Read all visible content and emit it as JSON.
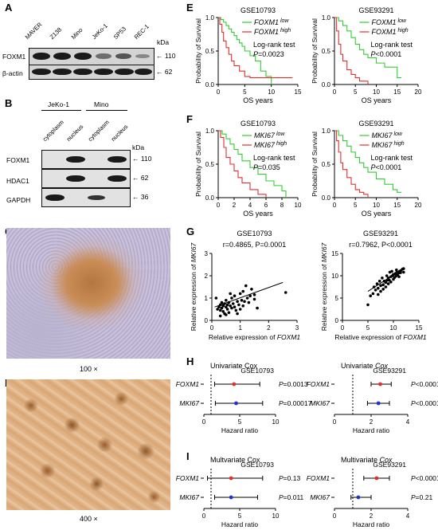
{
  "panel_labels": {
    "A": "A",
    "B": "B",
    "C": "C",
    "D": "D",
    "E": "E",
    "F": "F",
    "G": "G",
    "H": "H",
    "I": "I"
  },
  "panelA": {
    "lanes": [
      "MAVER",
      "Z138",
      "Mino",
      "JeKo-1",
      "SP53",
      "REC-1"
    ],
    "kda_label": "kDa",
    "rows": [
      {
        "name": "FOXM1",
        "kda": "110"
      },
      {
        "name": "β-actin",
        "kda": "62"
      }
    ]
  },
  "panelB": {
    "groups": [
      "JeKo-1",
      "Mino"
    ],
    "lanes": [
      "cytoplasm",
      "nucleus",
      "cytoplasm",
      "nucleus"
    ],
    "kda_label": "kDa",
    "rows": [
      {
        "name": "FOXM1",
        "kda": "110"
      },
      {
        "name": "HDAC1",
        "kda": "62"
      },
      {
        "name": "GAPDH",
        "kda": "36"
      }
    ]
  },
  "panelC": {
    "caption": "100 ×"
  },
  "panelD": {
    "caption": "400 ×"
  },
  "km_charts": [
    {
      "id": "E1",
      "title": "GSE10793",
      "gene": "FOXM1",
      "low": "FOXM1",
      "high": "FOXM1",
      "low_sup": "low",
      "high_sup": "high",
      "test": "Log-rank test",
      "p": "P=0.0023",
      "xlabel": "OS years",
      "ylabel": "Probability of Survival",
      "xticks": [
        "0",
        "5",
        "10",
        "15"
      ],
      "yticks": [
        "0.0",
        "0.5",
        "1.0"
      ],
      "xmax": 15
    },
    {
      "id": "E2",
      "title": "GSE93291",
      "gene": "FOXM1",
      "low": "FOXM1",
      "high": "FOXM1",
      "low_sup": "low",
      "high_sup": "high",
      "test": "Log-rank test",
      "p": "P<0.0001",
      "xlabel": "OS years",
      "ylabel": "Probability of Survival",
      "xticks": [
        "0",
        "5",
        "10",
        "15",
        "20"
      ],
      "yticks": [
        "0.0",
        "0.5",
        "1.0"
      ],
      "xmax": 20
    },
    {
      "id": "F1",
      "title": "GSE10793",
      "gene": "MKI67",
      "low": "MKI67",
      "high": "MKI67",
      "low_sup": "low",
      "high_sup": "high",
      "test": "Log-rank test",
      "p": "P=0.035",
      "xlabel": "OS years",
      "ylabel": "Probability of Survival",
      "xticks": [
        "0",
        "2",
        "4",
        "6",
        "8",
        "10"
      ],
      "yticks": [
        "0.0",
        "0.5",
        "1.0"
      ],
      "xmax": 10
    },
    {
      "id": "F2",
      "title": "GSE93291",
      "gene": "MKI67",
      "low": "MKI67",
      "high": "MKI67",
      "low_sup": "low",
      "high_sup": "high",
      "test": "Log-rank test",
      "p": "P<0.0001",
      "xlabel": "OS years",
      "ylabel": "Probability of Survival",
      "xticks": [
        "0",
        "5",
        "10",
        "15",
        "20"
      ],
      "yticks": [
        "0.0",
        "0.5",
        "1.0"
      ],
      "xmax": 20
    }
  ],
  "scatter_charts": [
    {
      "id": "G1",
      "title": "GSE10793",
      "stat": "r=0.4865, P=0.0001",
      "xlabel_prefix": "Relative expression of ",
      "xgene": "FOXM1",
      "ylabel_prefix": "Relative expression of ",
      "ygene": "MKI67",
      "xticks": [
        "0",
        "1",
        "2",
        "3"
      ],
      "yticks": [
        "0",
        "1",
        "2",
        "3"
      ]
    },
    {
      "id": "G2",
      "title": "GSE93291",
      "stat": "r=0.7962, P<0.0001",
      "xlabel_prefix": "Relative expression of ",
      "xgene": "FOXM1",
      "ylabel_prefix": "Relative expression of ",
      "ygene": "MKI67",
      "xticks": [
        "0",
        "5",
        "10",
        "15"
      ],
      "yticks": [
        "0",
        "5",
        "10",
        "15"
      ]
    }
  ],
  "forest_charts": [
    {
      "id": "H1",
      "title": "Univariate Cox",
      "dataset": "GSE10793",
      "xlabel": "Hazard ratio",
      "xticks": [
        "0",
        "5",
        "10"
      ],
      "rows": [
        {
          "name": "FOXM1",
          "p": "P=0.0013"
        },
        {
          "name": "MKI67",
          "p": "P=0.00017"
        }
      ]
    },
    {
      "id": "H2",
      "title": "Univariate Cox",
      "dataset": "GSE93291",
      "xlabel": "Hazard ratio",
      "xticks": [
        "0",
        "2",
        "4"
      ],
      "rows": [
        {
          "name": "FOXM1",
          "p": "P<0.0001"
        },
        {
          "name": "MKI67",
          "p": "P<0.0001"
        }
      ]
    },
    {
      "id": "I1",
      "title": "Multvariate Cox",
      "dataset": "GSE10793",
      "xlabel": "Hazard ratio",
      "xticks": [
        "0",
        "5",
        "10"
      ],
      "rows": [
        {
          "name": "FOXM1",
          "p": "P=0.13"
        },
        {
          "name": "MKI67",
          "p": "P=0.011"
        }
      ]
    },
    {
      "id": "I2",
      "title": "Multivariate Cox",
      "dataset": "GSE93291",
      "xlabel": "Hazard ratio",
      "xticks": [
        "0",
        "2",
        "4"
      ],
      "rows": [
        {
          "name": "FOXM1",
          "p": "P<0.0001"
        },
        {
          "name": "MKI67",
          "p": "P=0.21"
        }
      ]
    }
  ],
  "chart_data": [
    {
      "type": "line",
      "id": "E1",
      "title": "GSE10793",
      "xlabel": "OS years",
      "ylabel": "Probability of Survival",
      "xlim": [
        0,
        15
      ],
      "ylim": [
        0,
        1
      ],
      "series": [
        {
          "name": "FOXM1 low",
          "color": "#33cc33",
          "x": [
            0,
            0.5,
            1,
            1.5,
            2,
            2.5,
            3,
            3.5,
            4,
            4.5,
            5,
            6,
            7,
            8,
            9,
            10
          ],
          "y": [
            1,
            0.97,
            0.93,
            0.88,
            0.83,
            0.78,
            0.73,
            0.67,
            0.62,
            0.57,
            0.5,
            0.43,
            0.35,
            0.2,
            0.12,
            0.0
          ]
        },
        {
          "name": "FOXM1 high",
          "color": "#e03030",
          "x": [
            0,
            0.3,
            0.7,
            1,
            1.5,
            2,
            2.5,
            3,
            4,
            5,
            6,
            14
          ],
          "y": [
            1,
            0.9,
            0.78,
            0.65,
            0.55,
            0.45,
            0.35,
            0.28,
            0.2,
            0.12,
            0.1,
            0.1
          ]
        }
      ]
    },
    {
      "type": "line",
      "id": "E2",
      "title": "GSE93291",
      "xlabel": "OS years",
      "ylabel": "Probability of Survival",
      "xlim": [
        0,
        20
      ],
      "ylim": [
        0,
        1
      ],
      "series": [
        {
          "name": "FOXM1 low",
          "color": "#33cc33",
          "x": [
            0,
            1,
            2,
            3,
            4,
            5,
            6,
            7,
            8,
            10,
            12,
            15,
            16
          ],
          "y": [
            1,
            0.95,
            0.88,
            0.8,
            0.7,
            0.6,
            0.52,
            0.45,
            0.4,
            0.32,
            0.26,
            0.1,
            0.1
          ]
        },
        {
          "name": "FOXM1 high",
          "color": "#e03030",
          "x": [
            0,
            0.5,
            1,
            1.5,
            2,
            3,
            4,
            5,
            6,
            8
          ],
          "y": [
            1,
            0.8,
            0.6,
            0.45,
            0.35,
            0.22,
            0.15,
            0.1,
            0.05,
            0.0
          ]
        }
      ]
    },
    {
      "type": "line",
      "id": "F1",
      "title": "GSE10793",
      "xlabel": "OS years",
      "ylabel": "Probability of Survival",
      "xlim": [
        0,
        10
      ],
      "ylim": [
        0,
        1
      ],
      "series": [
        {
          "name": "MKI67 low",
          "color": "#33cc33",
          "x": [
            0,
            0.5,
            1,
            1.5,
            2,
            2.5,
            3,
            4,
            5,
            6,
            7,
            8,
            8.5
          ],
          "y": [
            1,
            0.95,
            0.88,
            0.8,
            0.72,
            0.65,
            0.55,
            0.45,
            0.35,
            0.25,
            0.18,
            0.1,
            0.0
          ]
        },
        {
          "name": "MKI67 high",
          "color": "#e03030",
          "x": [
            0,
            0.3,
            0.7,
            1,
            1.5,
            2,
            2.5,
            3,
            4,
            5,
            6
          ],
          "y": [
            1,
            0.9,
            0.75,
            0.6,
            0.5,
            0.4,
            0.3,
            0.22,
            0.12,
            0.05,
            0.0
          ]
        }
      ]
    },
    {
      "type": "line",
      "id": "F2",
      "title": "GSE93291",
      "xlabel": "OS years",
      "ylabel": "Probability of Survival",
      "xlim": [
        0,
        20
      ],
      "ylim": [
        0,
        1
      ],
      "series": [
        {
          "name": "MKI67 low",
          "color": "#33cc33",
          "x": [
            0,
            1,
            2,
            3,
            4,
            5,
            6,
            7,
            8,
            10,
            12,
            14,
            15,
            16
          ],
          "y": [
            1,
            0.93,
            0.85,
            0.77,
            0.68,
            0.6,
            0.52,
            0.45,
            0.38,
            0.28,
            0.2,
            0.12,
            0.08,
            0.08
          ]
        },
        {
          "name": "MKI67 high",
          "color": "#e03030",
          "x": [
            0,
            0.5,
            1,
            1.5,
            2,
            3,
            4,
            5,
            6,
            7,
            8
          ],
          "y": [
            1,
            0.85,
            0.68,
            0.52,
            0.42,
            0.3,
            0.2,
            0.12,
            0.08,
            0.05,
            0.0
          ]
        }
      ]
    },
    {
      "type": "scatter",
      "id": "G1",
      "title": "GSE10793",
      "xlabel": "Relative expression of FOXM1",
      "ylabel": "Relative expression of MKI67",
      "xlim": [
        0,
        3
      ],
      "ylim": [
        0,
        3
      ],
      "points": [
        [
          0.2,
          0.5
        ],
        [
          0.25,
          0.6
        ],
        [
          0.3,
          0.45
        ],
        [
          0.3,
          0.7
        ],
        [
          0.35,
          0.55
        ],
        [
          0.35,
          0.8
        ],
        [
          0.4,
          0.65
        ],
        [
          0.4,
          0.4
        ],
        [
          0.45,
          0.75
        ],
        [
          0.45,
          0.3
        ],
        [
          0.5,
          0.6
        ],
        [
          0.5,
          0.9
        ],
        [
          0.55,
          0.5
        ],
        [
          0.55,
          0.7
        ],
        [
          0.6,
          0.8
        ],
        [
          0.6,
          0.35
        ],
        [
          0.65,
          0.65
        ],
        [
          0.7,
          1.0
        ],
        [
          0.7,
          0.55
        ],
        [
          0.75,
          0.75
        ],
        [
          0.8,
          0.6
        ],
        [
          0.8,
          1.1
        ],
        [
          0.85,
          0.45
        ],
        [
          0.9,
          0.85
        ],
        [
          0.95,
          0.7
        ],
        [
          1.0,
          1.2
        ],
        [
          1.0,
          0.5
        ],
        [
          1.05,
          0.9
        ],
        [
          1.1,
          1.3
        ],
        [
          1.1,
          0.65
        ],
        [
          1.2,
          1.55
        ],
        [
          1.25,
          1.0
        ],
        [
          1.3,
          0.8
        ],
        [
          1.35,
          1.1
        ],
        [
          1.4,
          1.4
        ],
        [
          1.5,
          0.95
        ],
        [
          1.5,
          1.15
        ],
        [
          0.15,
          1.0
        ],
        [
          0.3,
          0.2
        ],
        [
          0.5,
          0.25
        ],
        [
          1.6,
          0.55
        ],
        [
          2.6,
          1.25
        ],
        [
          0.65,
          1.2
        ],
        [
          0.9,
          0.3
        ],
        [
          1.15,
          0.85
        ]
      ],
      "fit": [
        [
          0.1,
          0.6
        ],
        [
          2.5,
          1.7
        ]
      ]
    },
    {
      "type": "scatter",
      "id": "G2",
      "title": "GSE93291",
      "xlabel": "Relative expression of FOXM1",
      "ylabel": "Relative expression of MKI67",
      "xlim": [
        0,
        15
      ],
      "ylim": [
        0,
        15
      ],
      "points": [
        [
          5,
          3.5
        ],
        [
          5.5,
          5.5
        ],
        [
          6,
          6
        ],
        [
          6.5,
          6.8
        ],
        [
          7,
          7.2
        ],
        [
          7,
          5.8
        ],
        [
          7.5,
          7.8
        ],
        [
          7.5,
          6.5
        ],
        [
          8,
          8
        ],
        [
          8,
          7
        ],
        [
          8.2,
          8.8
        ],
        [
          8.5,
          7.5
        ],
        [
          8.5,
          8.5
        ],
        [
          8.8,
          9
        ],
        [
          9,
          8.2
        ],
        [
          9,
          9.5
        ],
        [
          9.2,
          9
        ],
        [
          9.5,
          9.8
        ],
        [
          9.5,
          8.6
        ],
        [
          9.8,
          10
        ],
        [
          10,
          9.2
        ],
        [
          10,
          10.3
        ],
        [
          10.2,
          9.6
        ],
        [
          10.4,
          10.5
        ],
        [
          10.5,
          9.9
        ],
        [
          10.7,
          10.8
        ],
        [
          10.8,
          10.2
        ],
        [
          11,
          10.6
        ],
        [
          11.2,
          11
        ],
        [
          11.4,
          10.7
        ],
        [
          11.5,
          11.2
        ],
        [
          11.8,
          11.5
        ],
        [
          12,
          10.8
        ],
        [
          7.8,
          9.5
        ],
        [
          6.8,
          8.2
        ],
        [
          9.3,
          10.8
        ],
        [
          10.6,
          11.3
        ],
        [
          8.7,
          10
        ],
        [
          9.7,
          11
        ],
        [
          11.1,
          9.8
        ],
        [
          6.2,
          7.5
        ],
        [
          7.3,
          8.8
        ],
        [
          12,
          11.6
        ]
      ],
      "fit": [
        [
          5,
          6.5
        ],
        [
          12.2,
          11.8
        ]
      ]
    },
    {
      "type": "scatter",
      "id": "H1",
      "title": "Univariate Cox GSE10793",
      "xlabel": "Hazard ratio",
      "xlim": [
        0,
        10
      ],
      "rows": [
        {
          "name": "FOXM1",
          "hr": 4.2,
          "ci": [
            1.5,
            7.8
          ],
          "color": "#e03030",
          "p": "P=0.0013"
        },
        {
          "name": "MKI67",
          "hr": 4.5,
          "ci": [
            1.6,
            8.2
          ],
          "color": "#2233cc",
          "p": "P=0.00017"
        }
      ]
    },
    {
      "type": "scatter",
      "id": "H2",
      "title": "Univariate Cox GSE93291",
      "xlabel": "Hazard ratio",
      "xlim": [
        0,
        4
      ],
      "rows": [
        {
          "name": "FOXM1",
          "hr": 2.5,
          "ci": [
            2.0,
            3.1
          ],
          "color": "#e03030",
          "p": "P<0.0001"
        },
        {
          "name": "MKI67",
          "hr": 2.4,
          "ci": [
            1.8,
            3.0
          ],
          "color": "#2233cc",
          "p": "P<0.0001"
        }
      ]
    },
    {
      "type": "scatter",
      "id": "I1",
      "title": "Multvariate Cox GSE10793",
      "xlabel": "Hazard ratio",
      "xlim": [
        0,
        10
      ],
      "rows": [
        {
          "name": "FOXM1",
          "hr": 3.8,
          "ci": [
            0.5,
            8.2
          ],
          "color": "#e03030",
          "p": "P=0.13"
        },
        {
          "name": "MKI67",
          "hr": 3.8,
          "ci": [
            1.5,
            7.5
          ],
          "color": "#2233cc",
          "p": "P=0.011"
        }
      ]
    },
    {
      "type": "scatter",
      "id": "I2",
      "title": "Multivariate Cox GSE93291",
      "xlabel": "Hazard ratio",
      "xlim": [
        0,
        4
      ],
      "rows": [
        {
          "name": "FOXM1",
          "hr": 2.3,
          "ci": [
            1.6,
            3.0
          ],
          "color": "#e03030",
          "p": "P<0.0001"
        },
        {
          "name": "MKI67",
          "hr": 1.3,
          "ci": [
            0.9,
            2.0
          ],
          "color": "#2233cc",
          "p": "P=0.21"
        }
      ]
    }
  ]
}
